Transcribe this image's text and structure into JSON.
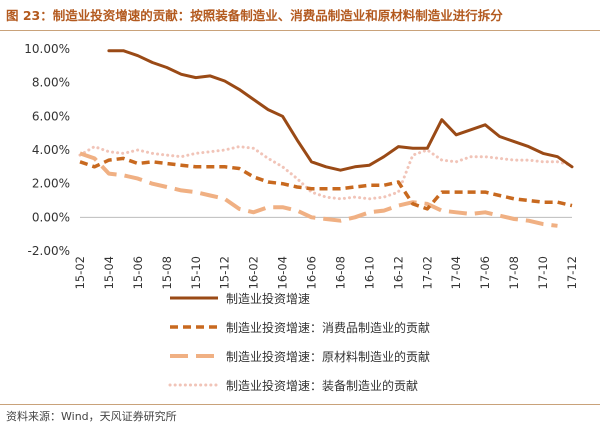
{
  "header": {
    "title": "图 23：制造业投资增速的贡献：按照装备制造业、消费品制造业和原材料制造业进行拆分"
  },
  "footer": {
    "source": "资料来源：Wind，天风证券研究所"
  },
  "colors": {
    "title": "#b35a1f",
    "rule": "#c9a27a",
    "series": [
      "#9a4a16",
      "#c8691f",
      "#f0b083",
      "#f1c4b8"
    ]
  },
  "chart_data": {
    "type": "line",
    "x_tick_labels": [
      "2015-02",
      "2015-04",
      "2015-06",
      "2015-08",
      "2015-10",
      "2015-12",
      "2016-02",
      "2016-04",
      "2016-06",
      "2016-08",
      "2016-10",
      "2016-12",
      "2017-02",
      "2017-04",
      "2017-06",
      "2017-08",
      "2017-10",
      "2017-12"
    ],
    "x": [
      "2015-02",
      "2015-03",
      "2015-04",
      "2015-05",
      "2015-06",
      "2015-07",
      "2015-08",
      "2015-09",
      "2015-10",
      "2015-11",
      "2015-12",
      "2016-01",
      "2016-02",
      "2016-03",
      "2016-04",
      "2016-05",
      "2016-06",
      "2016-07",
      "2016-08",
      "2016-09",
      "2016-10",
      "2016-11",
      "2016-12",
      "2017-01",
      "2017-02",
      "2017-03",
      "2017-04",
      "2017-05",
      "2017-06",
      "2017-07",
      "2017-08",
      "2017-09",
      "2017-10",
      "2017-11",
      "2017-12"
    ],
    "ylim": [
      -2,
      10
    ],
    "yticks": [
      -2,
      0,
      2,
      4,
      6,
      8,
      10
    ],
    "ytick_labels": [
      "-2.00%",
      "0.00%",
      "2.00%",
      "4.00%",
      "6.00%",
      "8.00%",
      "10.00%"
    ],
    "grid": false,
    "legend_position": "bottom",
    "series": [
      {
        "name": "制造业投资增速",
        "style": "solid",
        "values": [
          null,
          null,
          9.9,
          9.9,
          9.6,
          9.2,
          8.9,
          8.5,
          8.3,
          8.4,
          8.1,
          7.6,
          7.0,
          6.4,
          6.0,
          4.6,
          3.3,
          3.0,
          2.8,
          3.0,
          3.1,
          3.6,
          4.2,
          4.1,
          4.1,
          5.8,
          4.9,
          5.2,
          5.5,
          4.8,
          4.5,
          4.2,
          3.8,
          3.6,
          3.0
        ]
      },
      {
        "name": "制造业投资增速：消费品制造业的贡献",
        "style": "dashed",
        "values": [
          3.3,
          3.0,
          3.4,
          3.5,
          3.2,
          3.3,
          3.2,
          3.1,
          3.0,
          3.0,
          3.0,
          2.9,
          2.4,
          2.1,
          2.0,
          1.8,
          1.7,
          1.7,
          1.7,
          1.8,
          1.9,
          1.9,
          2.1,
          0.8,
          0.5,
          1.5,
          1.5,
          1.5,
          1.5,
          1.3,
          1.1,
          1.0,
          0.9,
          0.9,
          0.7
        ]
      },
      {
        "name": "制造业投资增速：原材料制造业的贡献",
        "style": "long-dashed",
        "values": [
          3.8,
          3.5,
          2.6,
          2.5,
          2.3,
          2.0,
          1.8,
          1.6,
          1.5,
          1.3,
          1.1,
          0.5,
          0.3,
          0.6,
          0.6,
          0.4,
          0.0,
          -0.1,
          -0.2,
          0.0,
          0.3,
          0.4,
          0.7,
          0.9,
          0.8,
          0.4,
          0.3,
          0.2,
          0.3,
          0.1,
          -0.1,
          -0.2,
          -0.4,
          -0.5,
          null
        ]
      },
      {
        "name": "制造业投资增速：装备制造业的贡献",
        "style": "dotted",
        "values": [
          3.7,
          4.2,
          3.9,
          3.8,
          4.0,
          3.8,
          3.7,
          3.6,
          3.8,
          3.9,
          4.0,
          4.2,
          4.1,
          3.5,
          3.0,
          2.3,
          1.5,
          1.2,
          1.1,
          1.2,
          1.1,
          1.2,
          1.5,
          3.7,
          4.0,
          3.4,
          3.3,
          3.6,
          3.6,
          3.5,
          3.4,
          3.4,
          3.3,
          3.3,
          3.1
        ]
      }
    ]
  }
}
